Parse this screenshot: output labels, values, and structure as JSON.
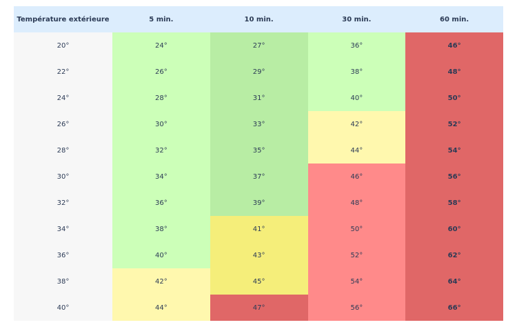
{
  "table": {
    "header": [
      "Température extérieure",
      "5 min.",
      "10 min.",
      "30 min.",
      "60 min."
    ],
    "rows": [
      [
        "20°",
        "24°",
        "27°",
        "36°",
        "46°"
      ],
      [
        "22°",
        "26°",
        "29°",
        "38°",
        "48°"
      ],
      [
        "24°",
        "28°",
        "31°",
        "40°",
        "50°"
      ],
      [
        "26°",
        "30°",
        "33°",
        "42°",
        "52°"
      ],
      [
        "28°",
        "32°",
        "35°",
        "44°",
        "54°"
      ],
      [
        "30°",
        "34°",
        "37°",
        "46°",
        "56°"
      ],
      [
        "32°",
        "36°",
        "39°",
        "48°",
        "58°"
      ],
      [
        "34°",
        "38°",
        "41°",
        "50°",
        "60°"
      ],
      [
        "36°",
        "40°",
        "43°",
        "52°",
        "62°"
      ],
      [
        "38°",
        "42°",
        "45°",
        "54°",
        "64°"
      ],
      [
        "40°",
        "44°",
        "47°",
        "56°",
        "66°"
      ]
    ],
    "colors": [
      [
        "#f7f7f7",
        "#ccffb8",
        "#b8eda4",
        "#ccffb8",
        "#e06767"
      ],
      [
        "#f7f7f7",
        "#ccffb8",
        "#b8eda4",
        "#ccffb8",
        "#e06767"
      ],
      [
        "#f7f7f7",
        "#ccffb8",
        "#b8eda4",
        "#ccffb8",
        "#e06767"
      ],
      [
        "#f7f7f7",
        "#ccffb8",
        "#b8eda4",
        "#fff8ae",
        "#e06767"
      ],
      [
        "#f7f7f7",
        "#ccffb8",
        "#b8eda4",
        "#fff8ae",
        "#e06767"
      ],
      [
        "#f7f7f7",
        "#ccffb8",
        "#b8eda4",
        "#ff8a8a",
        "#e06767"
      ],
      [
        "#f7f7f7",
        "#ccffb8",
        "#b8eda4",
        "#ff8a8a",
        "#e06767"
      ],
      [
        "#f7f7f7",
        "#ccffb8",
        "#f5ee7a",
        "#ff8a8a",
        "#e06767"
      ],
      [
        "#f7f7f7",
        "#ccffb8",
        "#f5ee7a",
        "#ff8a8a",
        "#e06767"
      ],
      [
        "#f7f7f7",
        "#fff8ae",
        "#f5ee7a",
        "#ff8a8a",
        "#e06767"
      ],
      [
        "#f7f7f7",
        "#fff8ae",
        "#e06767",
        "#ff8a8a",
        "#e06767"
      ]
    ],
    "header_color": "#dcedfd"
  }
}
